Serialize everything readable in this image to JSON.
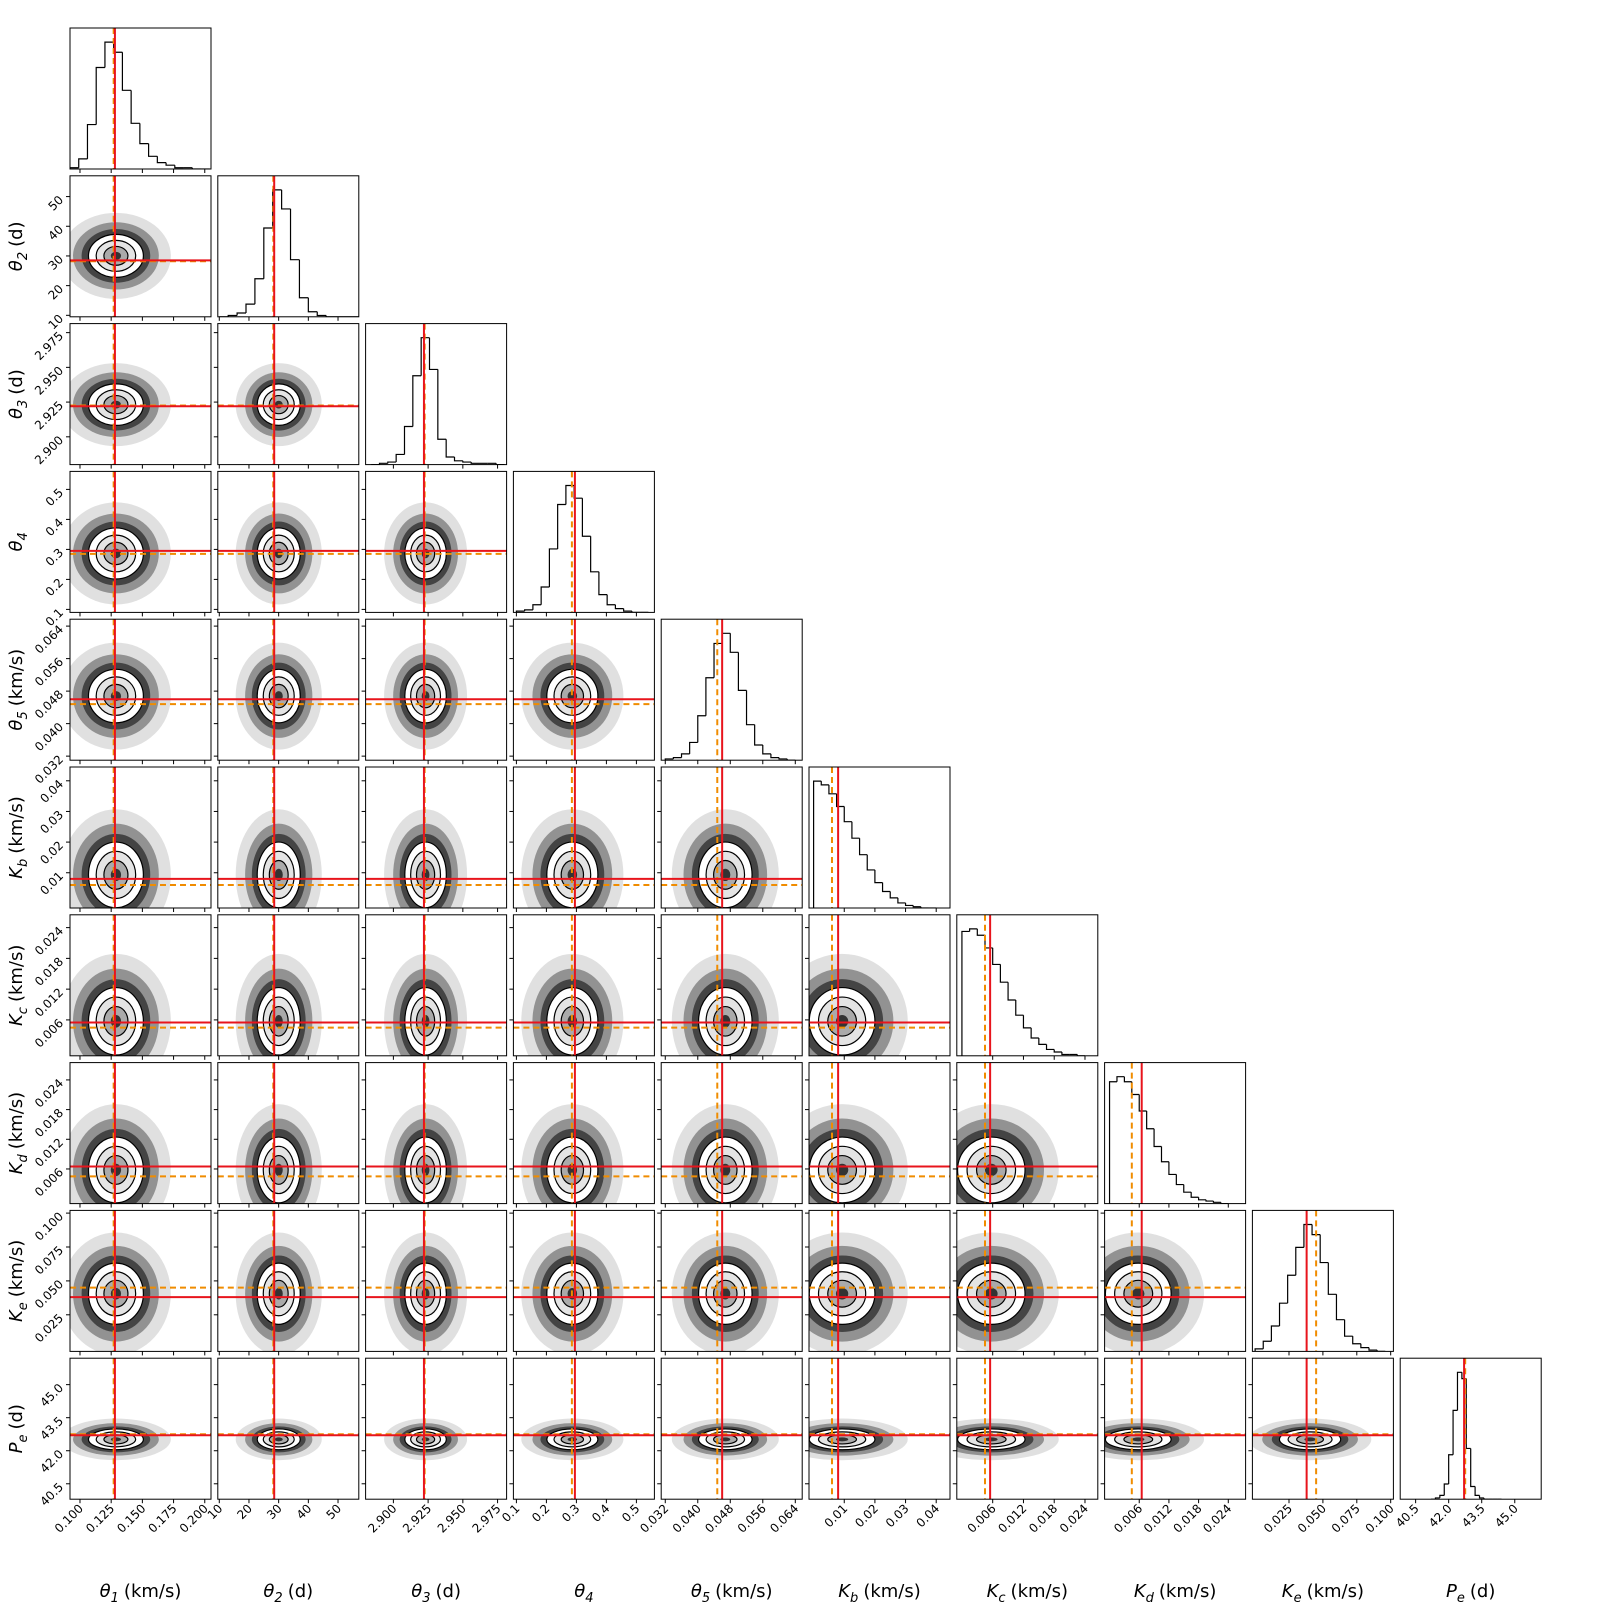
{
  "chart_data": {
    "type": "corner",
    "truth_color": "#e8141c",
    "estimate_color": "#f08c00",
    "parameters": [
      {
        "symbol": "θ",
        "sub": "1",
        "unit": "(km/s)",
        "lim": [
          0.092,
          0.205
        ],
        "ticks": [
          {
            "value": 0.1,
            "label": "0.100"
          },
          0.125,
          {
            "value": 0.15,
            "label": "0.150"
          },
          0.175,
          {
            "value": 0.2,
            "label": "0.200"
          }
        ],
        "truth": 0.128,
        "estimate": 0.127,
        "bins": [
          0.092,
          0.099,
          0.106,
          0.113,
          0.12,
          0.127,
          0.134,
          0.141,
          0.148,
          0.155,
          0.162,
          0.169,
          0.176,
          0.183,
          0.19,
          0.197,
          0.204
        ],
        "counts": [
          1,
          8,
          35,
          80,
          100,
          92,
          62,
          36,
          20,
          10,
          5,
          3,
          1,
          1,
          0,
          0
        ]
      },
      {
        "symbol": "θ",
        "sub": "2",
        "unit": "(d)",
        "lim": [
          9.5,
          57
        ],
        "ticks": [
          10,
          20,
          30,
          40,
          50
        ],
        "truth": 28.5,
        "estimate": 28.2,
        "bins": [
          10,
          13,
          16,
          19,
          22,
          25,
          28,
          31,
          34,
          37,
          40,
          43,
          46,
          49,
          52,
          55,
          58
        ],
        "counts": [
          0,
          1,
          3,
          10,
          30,
          70,
          100,
          85,
          45,
          15,
          4,
          1,
          0,
          0,
          0,
          0
        ]
      },
      {
        "symbol": "θ",
        "sub": "3",
        "unit": "(d)",
        "lim": [
          2.88,
          2.9815
        ],
        "ticks": [
          {
            "value": 2.9,
            "label": "2.900"
          },
          2.925,
          {
            "value": 2.95,
            "label": "2.950"
          },
          2.975
        ],
        "truth": 2.922,
        "estimate": 2.9225,
        "bins": [
          2.884,
          2.89,
          2.896,
          2.902,
          2.908,
          2.914,
          2.92,
          2.926,
          2.932,
          2.938,
          2.944,
          2.95,
          2.956,
          2.962,
          2.968,
          2.974,
          2.98
        ],
        "counts": [
          0,
          1,
          2,
          8,
          30,
          70,
          100,
          75,
          20,
          6,
          3,
          2,
          1,
          1,
          1,
          0
        ]
      },
      {
        "symbol": "θ",
        "sub": "4",
        "unit": "",
        "lim": [
          0.09,
          0.56
        ],
        "ticks": [
          0.1,
          0.2,
          0.3,
          0.4,
          0.5
        ],
        "truth": 0.295,
        "estimate": 0.285,
        "bins": [
          0.1,
          0.1275,
          0.155,
          0.1825,
          0.21,
          0.2375,
          0.265,
          0.2925,
          0.32,
          0.3475,
          0.375,
          0.4025,
          0.43,
          0.4575,
          0.485,
          0.5125,
          0.54
        ],
        "counts": [
          1,
          2,
          6,
          20,
          50,
          85,
          100,
          90,
          60,
          32,
          14,
          6,
          3,
          1,
          0,
          0
        ]
      },
      {
        "symbol": "θ",
        "sub": "5",
        "unit": "(km/s)",
        "lim": [
          0.031,
          0.0657
        ],
        "ticks": [
          0.032,
          {
            "value": 0.04,
            "label": "0.040"
          },
          0.048,
          0.056,
          0.064
        ],
        "truth": 0.046,
        "estimate": 0.0448,
        "bins": [
          0.032,
          0.034,
          0.036,
          0.038,
          0.04,
          0.042,
          0.044,
          0.046,
          0.048,
          0.05,
          0.052,
          0.054,
          0.056,
          0.058,
          0.06,
          0.062,
          0.064
        ],
        "counts": [
          1,
          2,
          5,
          14,
          35,
          65,
          92,
          100,
          85,
          55,
          28,
          12,
          5,
          2,
          1,
          0
        ]
      },
      {
        "symbol": "K",
        "sub": "b",
        "unit": "(km/s)",
        "lim": [
          -0.0015,
          0.0445
        ],
        "ticks": [
          0.01,
          0.02,
          0.03,
          0.04
        ],
        "truth": 0.008,
        "estimate": 0.006,
        "bins": [
          0,
          0.0025,
          0.005,
          0.0075,
          0.01,
          0.0125,
          0.015,
          0.0175,
          0.02,
          0.0225,
          0.025,
          0.0275,
          0.03,
          0.0325,
          0.035,
          0.0375,
          0.04
        ],
        "counts": [
          100,
          97,
          90,
          80,
          68,
          55,
          42,
          30,
          20,
          13,
          8,
          4,
          2,
          1,
          0,
          0
        ]
      },
      {
        "symbol": "K",
        "sub": "c",
        "unit": "(km/s)",
        "lim": [
          -0.001,
          0.0265
        ],
        "ticks": [
          0.006,
          0.012,
          0.018,
          0.024
        ],
        "truth": 0.0055,
        "estimate": 0.0045,
        "bins": [
          0,
          0.0015,
          0.003,
          0.0045,
          0.006,
          0.0075,
          0.009,
          0.0105,
          0.012,
          0.0135,
          0.015,
          0.0165,
          0.018,
          0.0195,
          0.021,
          0.0225,
          0.024
        ],
        "counts": [
          98,
          100,
          95,
          85,
          72,
          58,
          44,
          32,
          22,
          14,
          9,
          5,
          3,
          1,
          1,
          0
        ]
      },
      {
        "symbol": "K",
        "sub": "d",
        "unit": "(km/s)",
        "lim": [
          -0.001,
          0.0275
        ],
        "ticks": [
          0.006,
          0.012,
          0.018,
          0.024
        ],
        "truth": 0.0065,
        "estimate": 0.0045,
        "bins": [
          0,
          0.0015,
          0.003,
          0.0045,
          0.006,
          0.0075,
          0.009,
          0.0105,
          0.012,
          0.0135,
          0.015,
          0.0165,
          0.018,
          0.0195,
          0.021,
          0.0225,
          0.024
        ],
        "counts": [
          96,
          100,
          96,
          86,
          73,
          59,
          45,
          33,
          23,
          15,
          9,
          5,
          3,
          2,
          1,
          0
        ]
      },
      {
        "symbol": "K",
        "sub": "e",
        "unit": "(km/s)",
        "lim": [
          -0.002,
          0.102
        ],
        "ticks": [
          0.025,
          {
            "value": 0.05,
            "label": "0.050"
          },
          0.075,
          {
            "value": 0.1,
            "label": "0.100"
          }
        ],
        "truth": 0.038,
        "estimate": 0.045,
        "bins": [
          0,
          0.006,
          0.012,
          0.018,
          0.024,
          0.03,
          0.036,
          0.042,
          0.048,
          0.054,
          0.06,
          0.066,
          0.072,
          0.078,
          0.084,
          0.09,
          0.096
        ],
        "counts": [
          2,
          8,
          20,
          38,
          60,
          82,
          100,
          92,
          70,
          45,
          25,
          12,
          6,
          3,
          1,
          0
        ]
      },
      {
        "symbol": "P",
        "sub": "e",
        "unit": "(d)",
        "lim": [
          39.8,
          46.2
        ],
        "ticks": [
          40.5,
          {
            "value": 42,
            "label": "42.0"
          },
          43.5,
          {
            "value": 45,
            "label": "45.0"
          }
        ],
        "truth": 42.7,
        "estimate": 42.75,
        "bins": [
          41.2,
          41.4,
          41.6,
          41.8,
          42.0,
          42.2,
          42.4,
          42.6,
          42.8,
          43.0,
          43.2,
          43.4,
          43.6,
          43.8,
          44.0,
          44.2,
          44.4
        ],
        "counts": [
          0,
          1,
          3,
          12,
          35,
          70,
          100,
          95,
          40,
          10,
          3,
          1,
          0,
          0,
          0,
          0
        ]
      }
    ]
  }
}
